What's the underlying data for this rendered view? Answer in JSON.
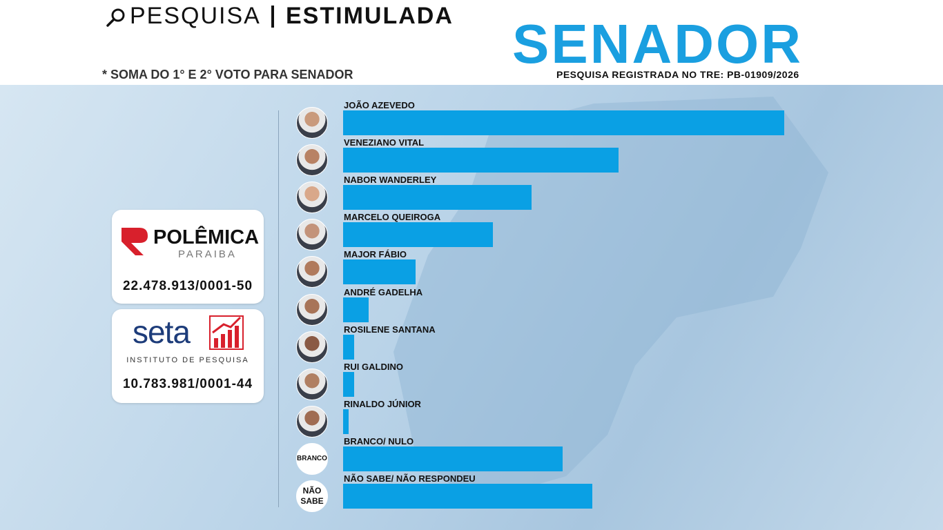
{
  "header": {
    "search": "PESQUISA",
    "kind": "ESTIMULADA",
    "note": "* SOMA DO 1° E 2° VOTO PARA SENADOR"
  },
  "logos": {
    "polemica": {
      "name": "POLÊMICA",
      "region": "PARAIBA",
      "cnpj": "22.478.913/0001-50"
    },
    "seta": {
      "name": "seta",
      "tagline": "INSTITUTO DE PESQUISA",
      "cnpj": "10.783.981/0001-44"
    }
  },
  "avatars": {
    "branco": "BRANCO",
    "nao_sabe": "NÃO SABE"
  },
  "chart_data": {
    "type": "bar",
    "orientation": "horizontal",
    "title": "SENADOR",
    "subtitle": "PESQUISA REGISTRADA NO TRE: PB-01909/2026",
    "categories": [
      "JOÃO AZEVEDO",
      "VENEZIANO VITAL",
      "NABOR WANDERLEY",
      "MARCELO QUEIROGA",
      "MAJOR FÁBIO",
      "ANDRÉ GADELHA",
      "ROSILENE SANTANA",
      "RUI GALDINO",
      "RINALDO JÚNIOR",
      "BRANCO/ NULO",
      "NÃO SABE/ NÃO RESPONDEU"
    ],
    "values": [
      40,
      25,
      17.1,
      13.6,
      6.6,
      2.3,
      1,
      1,
      0.5,
      19.9,
      22.6
    ],
    "color": "#0aa0e4"
  }
}
